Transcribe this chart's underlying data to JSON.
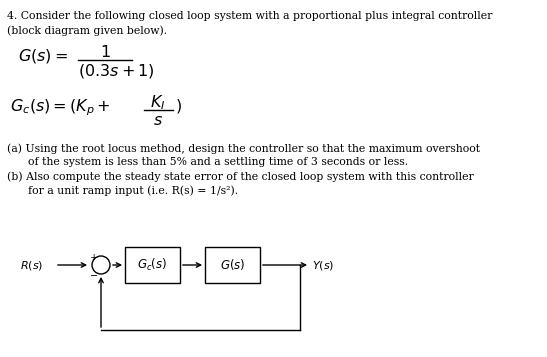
{
  "bg_color": "#ffffff",
  "text_color": "#000000",
  "title_line1": "4. Consider the following closed loop system with a proportional plus integral controller",
  "title_line2": "(block diagram given below).",
  "part_a_1": "(a) Using the root locus method, design the controller so that the maximum overshoot",
  "part_a_2": "      of the system is less than 5% and a settling time of 3 seconds or less.",
  "part_b_1": "(b) Also compute the steady state error of the closed loop system with this controller",
  "part_b_2": "      for a unit ramp input (i.e. R(s) = 1/s²).",
  "fig_width": 5.47,
  "fig_height": 3.57,
  "dpi": 100
}
